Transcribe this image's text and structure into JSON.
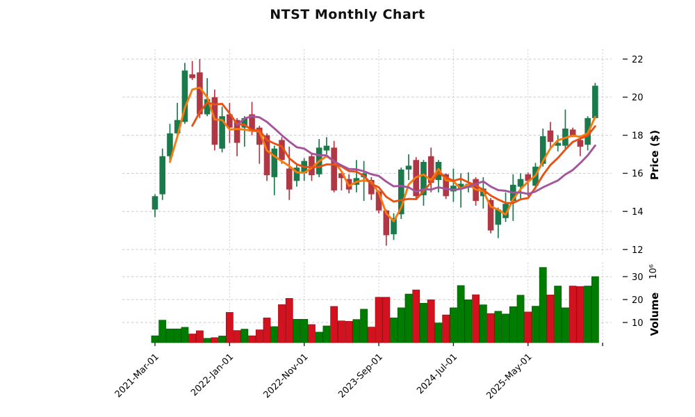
{
  "title": "NTST Monthly Chart",
  "price_axis": {
    "label": "Price ($)",
    "ticks": [
      22,
      20,
      18,
      16,
      14,
      12
    ]
  },
  "volume_axis": {
    "label": "Volume",
    "multiplier": "10⁶",
    "ticks": [
      30,
      20,
      10
    ]
  },
  "x_axis": {
    "ticks": [
      {
        "index": 0,
        "label": "2021-Mar-01"
      },
      {
        "index": 10,
        "label": "2022-Jan-01"
      },
      {
        "index": 20,
        "label": "2022-Nov-01"
      },
      {
        "index": 30,
        "label": "2023-Sep-01"
      },
      {
        "index": 40,
        "label": "2024-Jul-01"
      },
      {
        "index": 50,
        "label": "2025-May-01"
      },
      {
        "index": 60,
        "label": ""
      }
    ]
  },
  "chart_data": {
    "type": "candlestick",
    "symbol": "NTST",
    "interval": "monthly",
    "title": "NTST Monthly Chart",
    "ylabel": "Price ($)",
    "ylabel_lower": "Volume",
    "price_ylim": [
      11.7,
      22.5
    ],
    "volume_ylim": [
      0,
      36
    ],
    "volume_unit": 1000000,
    "grid": true,
    "moving_averages": [
      3,
      6,
      12
    ],
    "colors": {
      "candle_up": "#1B7A4B",
      "candle_down": "#B03845",
      "volume_up": "#007D00",
      "volume_down": "#D2121E",
      "volume_up_edge": "#005C00",
      "volume_down_edge": "#9C0D15",
      "ma_colors": [
        "#F8790D",
        "#E75113",
        "#A2559C"
      ],
      "grid": "#C9C9C9"
    },
    "ohlc": [
      [
        14.1,
        14.9,
        13.7,
        14.8
      ],
      [
        14.9,
        17.3,
        14.6,
        16.9
      ],
      [
        16.9,
        18.6,
        16.6,
        18.1
      ],
      [
        18.1,
        19.7,
        17.9,
        18.8
      ],
      [
        18.7,
        21.8,
        18.6,
        21.4
      ],
      [
        21.2,
        21.9,
        20.9,
        21.0
      ],
      [
        21.3,
        22.0,
        18.9,
        19.1
      ],
      [
        19.1,
        21.0,
        19.0,
        19.9
      ],
      [
        20.0,
        20.4,
        17.2,
        17.5
      ],
      [
        17.3,
        19.5,
        17.1,
        19.0
      ],
      [
        19.1,
        19.7,
        17.6,
        18.4
      ],
      [
        18.8,
        18.9,
        16.9,
        17.6
      ],
      [
        18.4,
        19.0,
        17.4,
        18.9
      ],
      [
        19.1,
        19.75,
        18.0,
        18.2
      ],
      [
        18.4,
        18.5,
        16.5,
        17.5
      ],
      [
        18.0,
        18.1,
        15.6,
        15.9
      ],
      [
        15.8,
        17.45,
        14.85,
        17.3
      ],
      [
        17.75,
        17.9,
        16.5,
        16.7
      ],
      [
        16.25,
        17.4,
        14.6,
        15.15
      ],
      [
        15.6,
        16.45,
        15.3,
        16.3
      ],
      [
        16.0,
        16.8,
        15.6,
        16.65
      ],
      [
        16.9,
        17.0,
        15.6,
        15.9
      ],
      [
        15.95,
        17.8,
        15.8,
        17.35
      ],
      [
        17.2,
        17.9,
        17.0,
        17.45
      ],
      [
        17.35,
        17.7,
        15.0,
        15.1
      ],
      [
        16.0,
        16.0,
        15.1,
        15.75
      ],
      [
        15.7,
        15.95,
        14.95,
        15.15
      ],
      [
        15.4,
        16.7,
        15.0,
        15.75
      ],
      [
        15.8,
        16.65,
        14.55,
        16.0
      ],
      [
        15.65,
        15.8,
        14.6,
        14.9
      ],
      [
        15.05,
        15.1,
        13.9,
        14.05
      ],
      [
        14.05,
        14.1,
        12.2,
        12.75
      ],
      [
        12.8,
        13.9,
        12.5,
        13.65
      ],
      [
        13.85,
        16.3,
        13.6,
        16.2
      ],
      [
        16.2,
        17.0,
        15.65,
        16.4
      ],
      [
        16.7,
        16.85,
        14.65,
        14.8
      ],
      [
        14.85,
        16.7,
        14.3,
        16.6
      ],
      [
        16.9,
        17.35,
        15.0,
        15.5
      ],
      [
        15.65,
        16.7,
        15.0,
        16.6
      ],
      [
        15.95,
        16.0,
        14.65,
        14.8
      ],
      [
        15.05,
        16.25,
        14.5,
        15.35
      ],
      [
        15.2,
        16.0,
        14.2,
        15.45
      ],
      [
        15.25,
        16.05,
        15.0,
        15.45
      ],
      [
        15.7,
        15.8,
        14.3,
        14.55
      ],
      [
        14.8,
        15.8,
        14.15,
        15.2
      ],
      [
        14.6,
        14.7,
        12.85,
        13.0
      ],
      [
        13.3,
        14.2,
        12.6,
        14.1
      ],
      [
        13.65,
        15.0,
        13.45,
        14.4
      ],
      [
        14.55,
        15.95,
        13.5,
        15.4
      ],
      [
        15.3,
        16.0,
        14.65,
        15.7
      ],
      [
        15.95,
        16.05,
        14.8,
        15.6
      ],
      [
        15.35,
        16.55,
        15.15,
        16.35
      ],
      [
        16.5,
        18.35,
        16.35,
        17.95
      ],
      [
        18.25,
        18.7,
        17.3,
        17.65
      ],
      [
        17.45,
        18.0,
        17.15,
        17.6
      ],
      [
        17.45,
        19.35,
        17.3,
        18.35
      ],
      [
        18.3,
        18.4,
        17.9,
        18.0
      ],
      [
        17.75,
        17.8,
        16.9,
        17.4
      ],
      [
        17.5,
        19.0,
        17.2,
        18.9
      ],
      [
        18.9,
        20.75,
        18.85,
        20.6
      ]
    ],
    "volume_m": [
      4.2,
      11,
      7.2,
      7.2,
      7.9,
      5,
      6.4,
      3.1,
      3.4,
      4.1,
      14.4,
      6.5,
      7.1,
      4.2,
      6.8,
      12,
      8.2,
      17.8,
      20.5,
      11.4,
      11.4,
      9.1,
      5.8,
      8.5,
      17,
      10.7,
      10.5,
      11.3,
      15.8,
      8,
      21,
      21,
      12,
      16.4,
      22.4,
      24.2,
      18.4,
      19.9,
      9.8,
      13.3,
      16.4,
      26.1,
      19.9,
      22.1,
      17.7,
      13.9,
      14.9,
      13.7,
      16.9,
      21.9,
      14.6,
      17.1,
      34,
      22,
      25.9,
      16.4,
      25.9,
      25.7,
      25.9,
      30
    ]
  }
}
